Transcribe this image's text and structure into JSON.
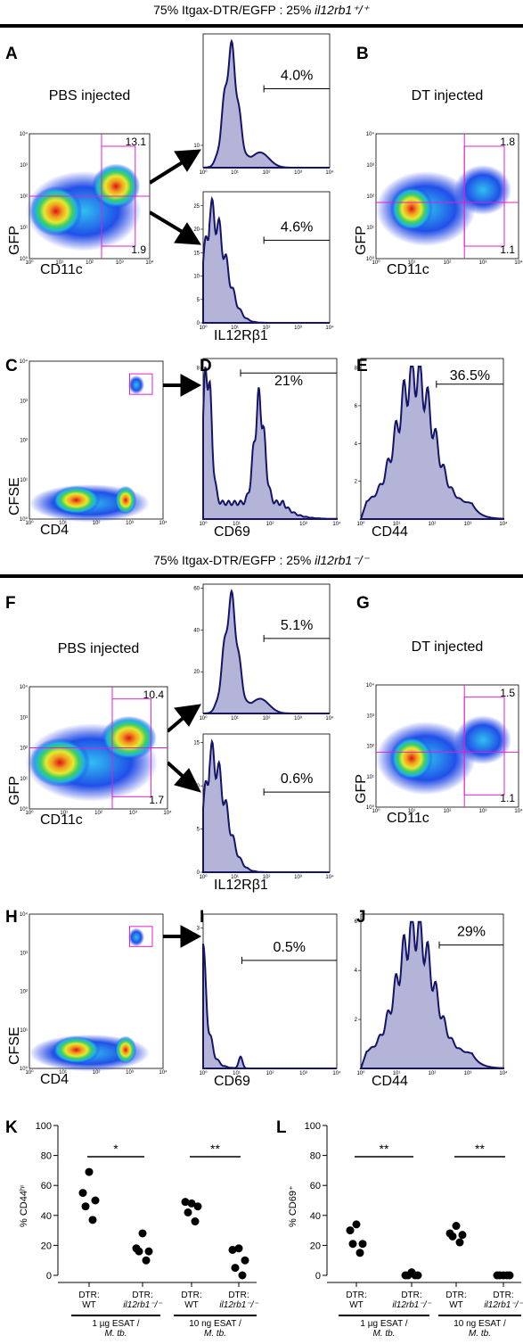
{
  "sections": [
    {
      "header_text": "75% Itgax-DTR/EGFP : 25%",
      "header_gene": "il12rb1⁺/⁺",
      "dot_plots": [
        {
          "letter": "A",
          "title": "PBS injected",
          "x_label": "CD11c",
          "y_label": "GFP",
          "upper_right": "13.1",
          "lower_right": "1.9"
        },
        {
          "letter": "B",
          "title": "DT injected",
          "x_label": "CD11c",
          "y_label": "GFP",
          "upper_right": "1.8",
          "lower_right": "1.1"
        },
        {
          "letter": "C",
          "x_label": "CD4",
          "y_label": "CFSE"
        }
      ],
      "histograms": [
        {
          "gate": "4.0%",
          "ylim": [
            0,
            60
          ],
          "yticks": [
            10
          ]
        },
        {
          "gate": "4.6%",
          "x_label": "IL12Rβ1",
          "ylim": [
            0,
            28
          ],
          "yticks": [
            0,
            5,
            10,
            15,
            20,
            25
          ]
        },
        {
          "letter": "D",
          "gate": "21%",
          "x_label": "CD69",
          "ylim": [
            0,
            8.5
          ],
          "yticks": [
            8
          ]
        },
        {
          "letter": "E",
          "gate": "36.5%",
          "x_label": "CD44",
          "ylim": [
            0,
            8.5
          ],
          "yticks": [
            2,
            4,
            6,
            8
          ]
        }
      ]
    },
    {
      "header_text": "75% Itgax-DTR/EGFP : 25%",
      "header_gene": "il12rb1⁻/⁻",
      "dot_plots": [
        {
          "letter": "F",
          "title": "PBS injected",
          "x_label": "CD11c",
          "y_label": "GFP",
          "upper_right": "10.4",
          "lower_right": "1.7"
        },
        {
          "letter": "G",
          "title": "DT injected",
          "x_label": "CD11c",
          "y_label": "GFP",
          "upper_right": "1.5",
          "lower_right": "1.1"
        },
        {
          "letter": "H",
          "x_label": "CD4",
          "y_label": "CFSE"
        }
      ],
      "histograms": [
        {
          "gate": "5.1%",
          "ylim": [
            0,
            62
          ],
          "yticks": [
            20,
            40,
            60
          ]
        },
        {
          "gate": "0.6%",
          "x_label": "IL12Rβ1",
          "ylim": [
            0,
            16
          ],
          "yticks": [
            0,
            5,
            10,
            15
          ]
        },
        {
          "letter": "I",
          "gate": "0.5%",
          "x_label": "CD69",
          "ylim": [
            0,
            3.3
          ],
          "yticks": [
            3
          ]
        },
        {
          "letter": "J",
          "gate": "29%",
          "x_label": "CD44",
          "ylim": [
            0,
            6.3
          ],
          "yticks": [
            2,
            4,
            6
          ]
        }
      ]
    }
  ],
  "log_ticks": [
    "10⁰",
    "10¹",
    "10²",
    "10³",
    "10⁴"
  ],
  "chart_data": [
    {
      "type": "dot",
      "letter": "K",
      "y_label": "% CD44ʰⁱ",
      "category_prefix": "DTR:",
      "categories": [
        "WT",
        "il12rb1⁻/⁻",
        "WT",
        "il12rb1⁻/⁻"
      ],
      "values": [
        [
          69,
          55,
          50,
          46,
          37
        ],
        [
          28,
          18,
          16,
          16,
          10
        ],
        [
          48,
          49,
          46,
          42,
          36
        ],
        [
          18,
          17,
          10,
          5,
          0
        ]
      ],
      "groups": [
        {
          "label": "1 µg ESAT /",
          "organism": "M. tb."
        },
        {
          "label": "10 ng ESAT /",
          "organism": "M. tb."
        }
      ],
      "significance": [
        "*",
        "**"
      ],
      "color": "#000000",
      "ylim": [
        0,
        100
      ],
      "yticks": [
        0,
        20,
        40,
        60,
        80,
        100
      ]
    },
    {
      "type": "dot",
      "letter": "L",
      "y_label": "% CD69⁺",
      "category_prefix": "DTR:",
      "categories": [
        "WT",
        "il12rb1⁻/⁻",
        "WT",
        "il12rb1⁻/⁻"
      ],
      "values": [
        [
          34,
          30,
          21,
          21,
          15
        ],
        [
          2,
          0,
          0,
          0,
          0
        ],
        [
          33,
          28,
          27,
          26,
          22
        ],
        [
          0,
          0,
          0,
          0,
          0
        ]
      ],
      "groups": [
        {
          "label": "1 µg ESAT /",
          "organism": "M. tb."
        },
        {
          "label": "10 ng ESAT /",
          "organism": "M. tb."
        }
      ],
      "significance": [
        "**",
        "**"
      ],
      "color": "#000000",
      "ylim": [
        0,
        100
      ],
      "yticks": [
        0,
        20,
        40,
        60,
        80,
        100
      ]
    }
  ]
}
